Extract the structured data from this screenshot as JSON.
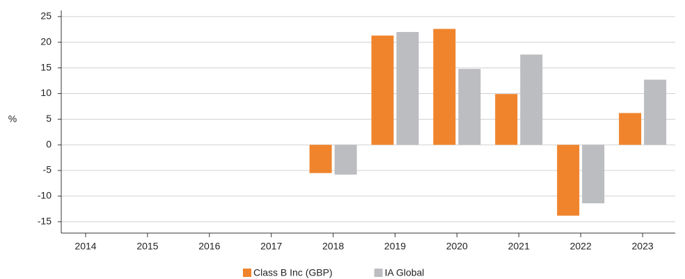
{
  "chart_data": {
    "type": "bar",
    "y_label": "%",
    "categories": [
      "2014",
      "2015",
      "2016",
      "2017",
      "2018",
      "2019",
      "2020",
      "2021",
      "2022",
      "2023"
    ],
    "series": [
      {
        "name": "Class B Inc (GBP)",
        "color": "#f0842c",
        "values": [
          null,
          null,
          null,
          null,
          -5.5,
          21.3,
          22.6,
          9.9,
          -13.8,
          6.2
        ]
      },
      {
        "name": "IA Global",
        "color": "#bcbdc0",
        "values": [
          null,
          null,
          null,
          null,
          -5.8,
          22.0,
          14.8,
          17.6,
          -11.4,
          12.7
        ]
      }
    ],
    "ylim": [
      -17.2,
      26.2
    ],
    "yticks": [
      -15,
      -10,
      -5,
      0,
      5,
      10,
      15,
      20,
      25
    ],
    "grid": true
  }
}
